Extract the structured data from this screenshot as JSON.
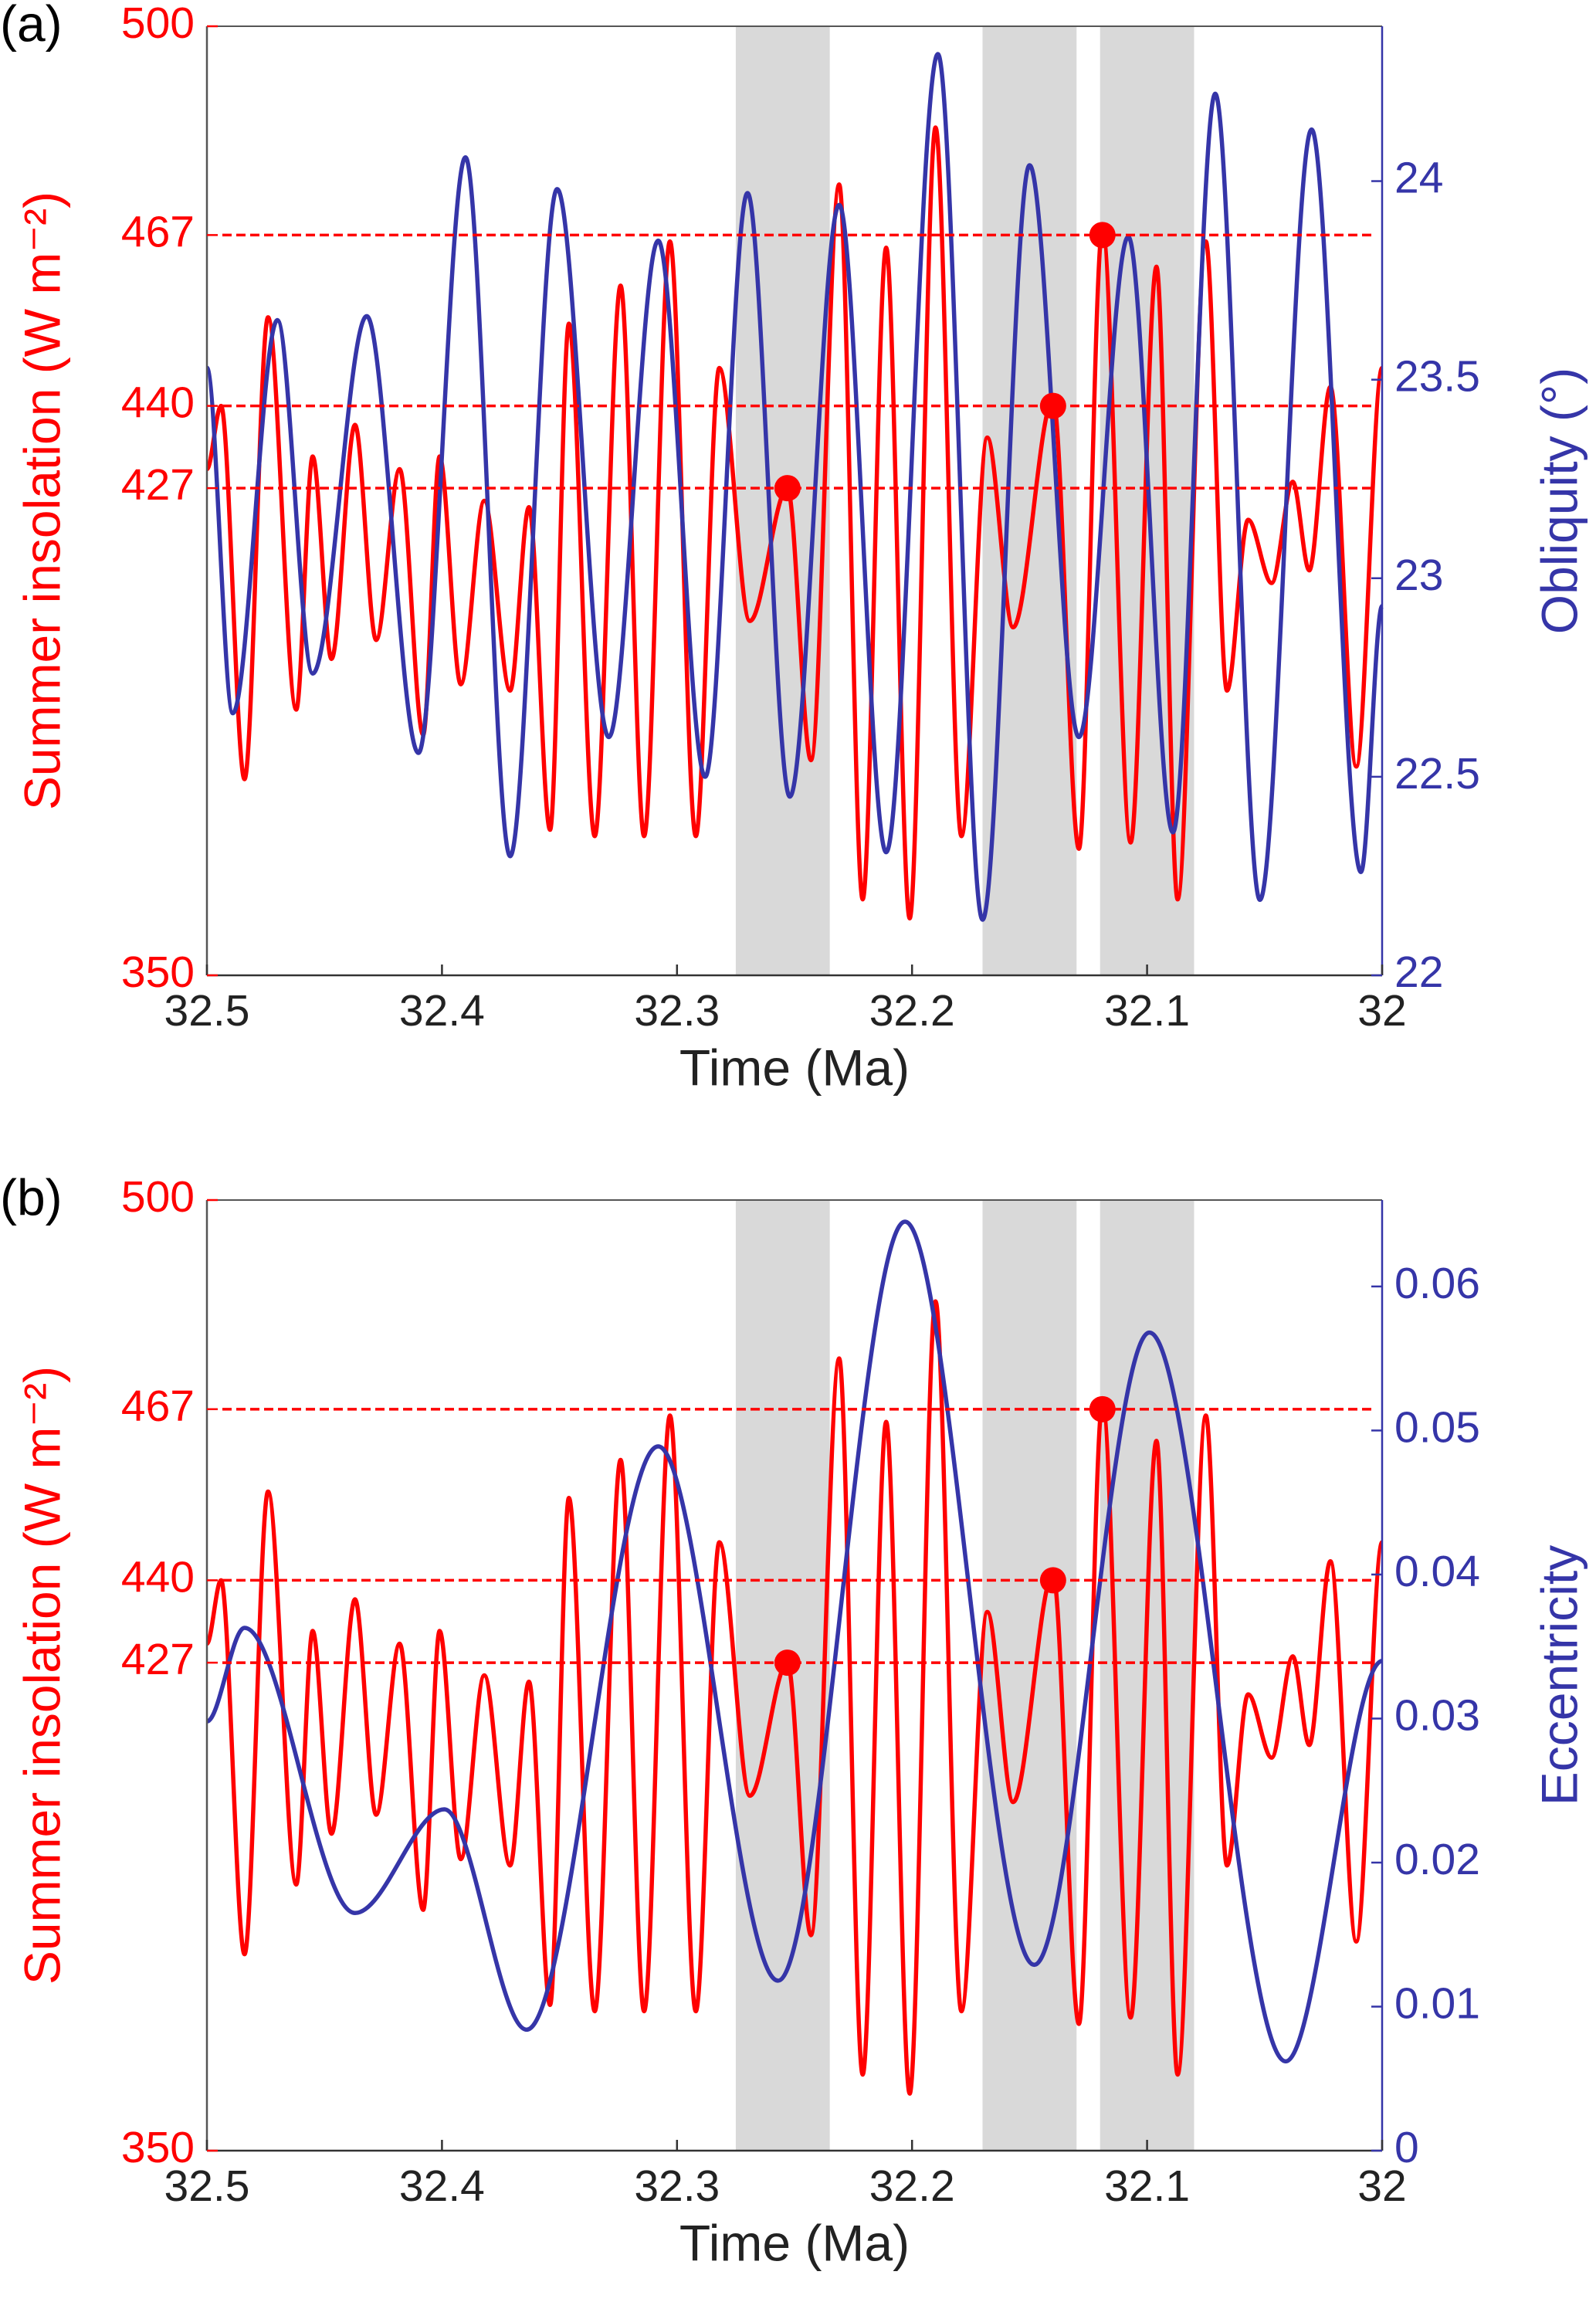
{
  "chart_data": [
    {
      "type": "line",
      "panel_label": "(a)",
      "x_label": "Time (Ma)",
      "y_label": "Summer insolation (W m⁻²)",
      "y2_label": "Obliquity (°)",
      "xlim": [
        32.5,
        32
      ],
      "xticks": [
        32.5,
        32.4,
        32.3,
        32.2,
        32.1,
        32
      ],
      "ylim": [
        350,
        500
      ],
      "yticks": [
        350,
        427,
        440,
        467,
        500
      ],
      "y2lim": [
        22,
        24.39
      ],
      "y2ticks": [
        22,
        22.5,
        23,
        23.5,
        24
      ],
      "shaded": [
        [
          32.275,
          32.235
        ],
        [
          32.17,
          32.13
        ],
        [
          32.12,
          32.08
        ]
      ],
      "reference_lines": [
        427,
        440,
        467
      ],
      "series": [
        {
          "color": "#ff0000",
          "x": [
            32.5,
            32.494,
            32.484,
            32.474,
            32.462,
            32.455,
            32.447,
            32.437,
            32.428,
            32.418,
            32.408,
            32.401,
            32.392,
            32.382,
            32.371,
            32.363,
            32.354,
            32.346,
            32.335,
            32.324,
            32.314,
            32.303,
            32.292,
            32.282,
            32.269,
            32.253,
            32.243,
            32.231,
            32.221,
            32.211,
            32.201,
            32.19,
            32.179,
            32.168,
            32.157,
            32.14,
            32.129,
            32.119,
            32.107,
            32.096,
            32.087,
            32.075,
            32.066,
            32.057,
            32.047,
            32.038,
            32.031,
            32.022,
            32.011,
            32
          ],
          "values": [
            430,
            440,
            381,
            454,
            392,
            432,
            400,
            437,
            403,
            430,
            388,
            432,
            396,
            425,
            395,
            424,
            373,
            453,
            372,
            459,
            372,
            466,
            372,
            446,
            406,
            427,
            384,
            475,
            362,
            465,
            359,
            484,
            372,
            435,
            405,
            441,
            370,
            468,
            371,
            462,
            362,
            466,
            395,
            422,
            412,
            428,
            414,
            443,
            383,
            446
          ]
        },
        {
          "color": "#3535a8",
          "axis": "y2",
          "x": [
            32.5,
            32.489,
            32.47,
            32.455,
            32.432,
            32.41,
            32.39,
            32.371,
            32.351,
            32.329,
            32.308,
            32.288,
            32.27,
            32.252,
            32.231,
            32.211,
            32.189,
            32.17,
            32.15,
            32.129,
            32.108,
            32.089,
            32.071,
            32.052,
            32.03,
            32.009,
            32
          ],
          "values": [
            23.53,
            22.66,
            23.65,
            22.76,
            23.66,
            22.56,
            24.06,
            22.3,
            23.98,
            22.6,
            23.85,
            22.5,
            23.97,
            22.45,
            23.94,
            22.31,
            24.32,
            22.14,
            24.04,
            22.6,
            23.86,
            22.36,
            24.22,
            22.19,
            24.13,
            22.26,
            22.93
          ]
        }
      ],
      "markers": {
        "color": "#ff0000",
        "x": [
          32.253,
          32.14,
          32.119
        ],
        "values": [
          427,
          440,
          467
        ]
      }
    },
    {
      "type": "line",
      "panel_label": "(b)",
      "x_label": "Time (Ma)",
      "y_label": "Summer insolation (W m⁻²)",
      "y2_label": "Eccentricity",
      "xlim": [
        32.5,
        32
      ],
      "xticks": [
        32.5,
        32.4,
        32.3,
        32.2,
        32.1,
        32
      ],
      "ylim": [
        350,
        500
      ],
      "yticks": [
        350,
        427,
        440,
        467,
        500
      ],
      "y2lim": [
        0,
        0.066
      ],
      "y2ticks": [
        0,
        0.01,
        0.02,
        0.03,
        0.04,
        0.05,
        0.06
      ],
      "shaded": [
        [
          32.275,
          32.235
        ],
        [
          32.17,
          32.13
        ],
        [
          32.12,
          32.08
        ]
      ],
      "reference_lines": [
        427,
        440,
        467
      ],
      "series": [
        {
          "color": "#ff0000",
          "x": [
            32.5,
            32.494,
            32.484,
            32.474,
            32.462,
            32.455,
            32.447,
            32.437,
            32.428,
            32.418,
            32.408,
            32.401,
            32.392,
            32.382,
            32.371,
            32.363,
            32.354,
            32.346,
            32.335,
            32.324,
            32.314,
            32.303,
            32.292,
            32.282,
            32.269,
            32.253,
            32.243,
            32.231,
            32.221,
            32.211,
            32.201,
            32.19,
            32.179,
            32.168,
            32.157,
            32.14,
            32.129,
            32.119,
            32.107,
            32.096,
            32.087,
            32.075,
            32.066,
            32.057,
            32.047,
            32.038,
            32.031,
            32.022,
            32.011,
            32
          ],
          "values": [
            430,
            440,
            381,
            454,
            392,
            432,
            400,
            437,
            403,
            430,
            388,
            432,
            396,
            425,
            395,
            424,
            373,
            453,
            372,
            459,
            372,
            466,
            372,
            446,
            406,
            427,
            384,
            475,
            362,
            465,
            359,
            484,
            372,
            435,
            405,
            441,
            370,
            468,
            371,
            462,
            362,
            466,
            395,
            422,
            412,
            428,
            414,
            443,
            383,
            446
          ]
        },
        {
          "color": "#3535a8",
          "axis": "y2",
          "x": [
            32.5,
            32.484,
            32.437,
            32.399,
            32.364,
            32.308,
            32.257,
            32.203,
            32.148,
            32.099,
            32.041,
            32
          ],
          "values": [
            0.0298,
            0.0363,
            0.0165,
            0.0237,
            0.0084,
            0.0489,
            0.0118,
            0.0645,
            0.0129,
            0.0568,
            0.0062,
            0.034
          ]
        }
      ],
      "markers": {
        "color": "#ff0000",
        "x": [
          32.253,
          32.14,
          32.119
        ],
        "values": [
          427,
          440,
          467
        ]
      }
    }
  ]
}
